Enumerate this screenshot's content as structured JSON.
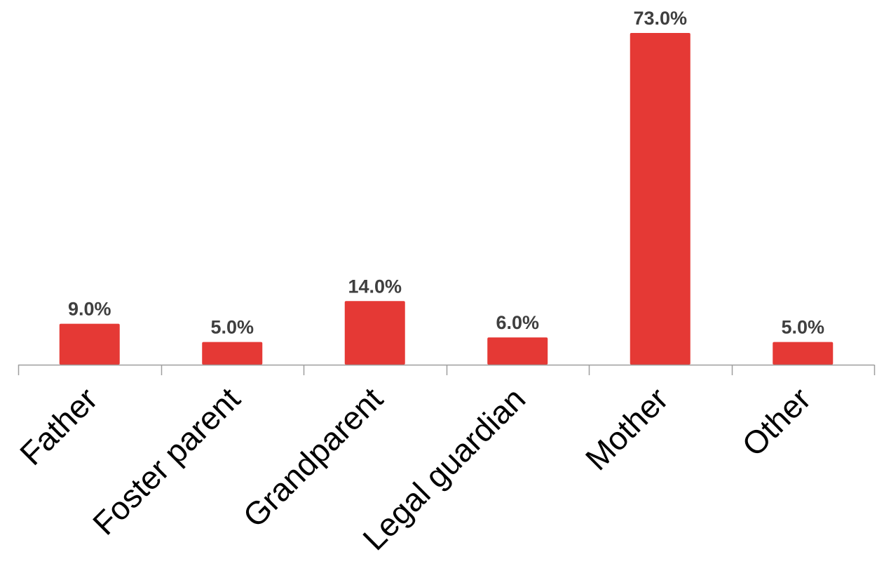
{
  "chart_data": {
    "type": "bar",
    "categories": [
      "Father",
      "Foster parent",
      "Grandparent",
      "Legal guardian",
      "Mother",
      "Other"
    ],
    "values": [
      9.0,
      5.0,
      14.0,
      6.0,
      73.0,
      5.0
    ],
    "value_labels": [
      "9.0%",
      "5.0%",
      "14.0%",
      "6.0%",
      "73.0%",
      "5.0%"
    ],
    "title": "",
    "xlabel": "",
    "ylabel": "",
    "ylim": [
      0,
      73
    ],
    "grid": false,
    "legend": "none",
    "y_axis_visible": false,
    "bar_color": "#e53935",
    "axis_color": "#9e9e9e",
    "label_color": "#3f3f3f"
  }
}
